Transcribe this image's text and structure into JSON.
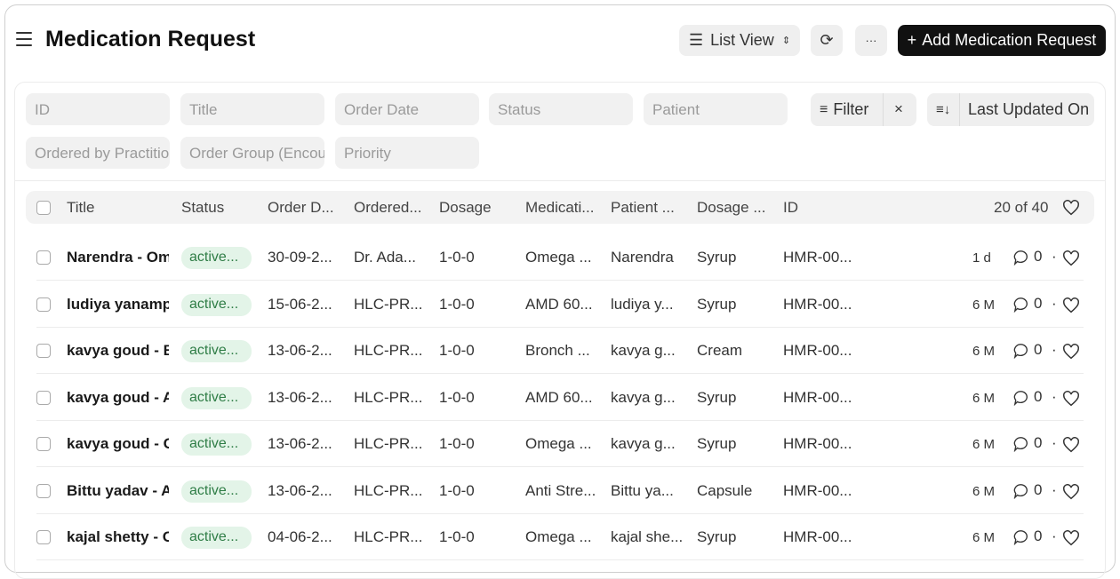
{
  "header": {
    "title": "Medication Request",
    "view_label": "List View",
    "add_label": "Add Medication Request",
    "more_label": "···"
  },
  "filters": {
    "placeholders": [
      "ID",
      "Title",
      "Order Date",
      "Status",
      "Patient",
      "Ordered by Practitioner",
      "Order Group (Encounter)",
      "Priority"
    ],
    "filter_label": "Filter",
    "sort_label": "Last Updated On"
  },
  "table": {
    "columns": [
      "Title",
      "Status",
      "Order D...",
      "Ordered...",
      "Dosage",
      "Medicati...",
      "Patient ...",
      "Dosage ...",
      "ID"
    ],
    "count": "20 of 40",
    "rows": [
      [
        "Narendra - Omega",
        "active...",
        "30-09-2...",
        "Dr. Ada...",
        "1-0-0",
        "Omega ...",
        "Narendra",
        "Syrup",
        "HMR-00...",
        "1 d",
        "0"
      ],
      [
        "ludiya yanampally",
        "active...",
        "15-06-2...",
        "HLC-PR...",
        "1-0-0",
        "AMD 60...",
        "ludiya y...",
        "Syrup",
        "HMR-00...",
        "6 M",
        "0"
      ],
      [
        "kavya goud - Bronch",
        "active...",
        "13-06-2...",
        "HLC-PR...",
        "1-0-0",
        "Bronch ...",
        "kavya g...",
        "Cream",
        "HMR-00...",
        "6 M",
        "0"
      ],
      [
        "kavya goud - AMD",
        "active...",
        "13-06-2...",
        "HLC-PR...",
        "1-0-0",
        "AMD 60...",
        "kavya g...",
        "Syrup",
        "HMR-00...",
        "6 M",
        "0"
      ],
      [
        "kavya goud - Omega",
        "active...",
        "13-06-2...",
        "HLC-PR...",
        "1-0-0",
        "Omega ...",
        "kavya g...",
        "Syrup",
        "HMR-00...",
        "6 M",
        "0"
      ],
      [
        "Bittu yadav - Anti",
        "active...",
        "13-06-2...",
        "HLC-PR...",
        "1-0-0",
        "Anti Stre...",
        "Bittu ya...",
        "Capsule",
        "HMR-00...",
        "6 M",
        "0"
      ],
      [
        "kajal shetty - Omega",
        "active...",
        "04-06-2...",
        "HLC-PR...",
        "1-0-0",
        "Omega ...",
        "kajal she...",
        "Syrup",
        "HMR-00...",
        "6 M",
        "0"
      ]
    ]
  },
  "colors": {
    "status_bg": "#e3f4e8",
    "status_text": "#2f7d46",
    "primary": "#111111"
  }
}
